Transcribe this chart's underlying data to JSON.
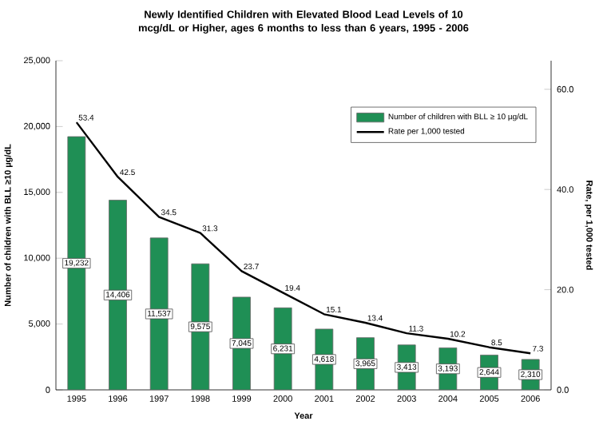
{
  "chart_data": {
    "type": "bar",
    "title": "Newly Identified Children with Elevated Blood Lead Levels of 10 mcg/dL or Higher, ages 6 months to less than 6 years, 1995 - 2006",
    "xlabel": "Year",
    "ylabel": "Number of children with BLL ≥10 µg/dL",
    "y2label": "Rate, per 1,000 tested",
    "categories": [
      "1995",
      "1996",
      "1997",
      "1998",
      "1999",
      "2000",
      "2001",
      "2002",
      "2003",
      "2004",
      "2005",
      "2006"
    ],
    "series": [
      {
        "name": "Number of children with BLL ≥ 10 µg/dL",
        "color": "#1f8f55",
        "values": [
          19232,
          14406,
          11537,
          9575,
          7045,
          6231,
          4618,
          3965,
          3413,
          3193,
          2644,
          2310
        ],
        "value_labels": [
          "19,232",
          "14,406",
          "11,537",
          "9,575",
          "7,045",
          "6,231",
          "4,618",
          "3,965",
          "3,413",
          "3,193",
          "2,644",
          "2,310"
        ]
      },
      {
        "name": "Rate per 1,000 tested",
        "type": "line",
        "axis": "y2",
        "color": "#000000",
        "values": [
          53.4,
          42.5,
          34.5,
          31.3,
          23.7,
          19.4,
          15.1,
          13.4,
          11.3,
          10.2,
          8.5,
          7.3
        ],
        "value_labels": [
          "53.4",
          "42.5",
          "34.5",
          "31.3",
          "23.7",
          "19.4",
          "15.1",
          "13.4",
          "11.3",
          "10.2",
          "8.5",
          "7.3"
        ]
      }
    ],
    "ylim": [
      0,
      25000
    ],
    "yticks": [
      {
        "value": 0,
        "label": "0"
      },
      {
        "value": 5000,
        "label": "5,000"
      },
      {
        "value": 10000,
        "label": "10,000"
      },
      {
        "value": 15000,
        "label": "15,000"
      },
      {
        "value": 20000,
        "label": "20,000"
      },
      {
        "value": 25000,
        "label": "25,000"
      }
    ],
    "y2lim": [
      0,
      65.7
    ],
    "y2ticks": [
      {
        "value": 0,
        "label": "0.0"
      },
      {
        "value": 20,
        "label": "20.0"
      },
      {
        "value": 40,
        "label": "40.0"
      },
      {
        "value": 60,
        "label": "60.0"
      }
    ],
    "legend": "top right"
  }
}
